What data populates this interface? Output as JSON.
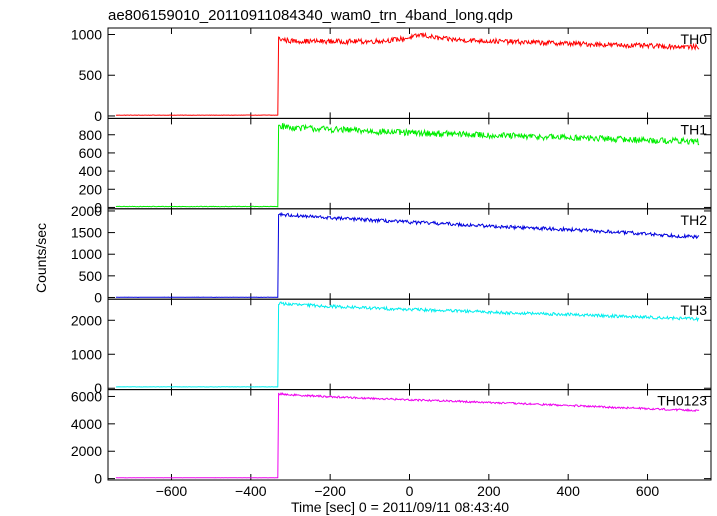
{
  "figure": {
    "title": "ae806159010_20110911084340_wam0_trn_4band_long.qdp",
    "ylabel": "Counts/sec",
    "xlabel": "Time [sec] 0 = 2011/09/11 08:43:40"
  },
  "chart_data": {
    "type": "line",
    "title": "ae806159010_20110911084340_wam0_trn_4band_long.qdp",
    "xlabel": "Time [sec] 0 = 2011/09/11 08:43:40",
    "ylabel": "Counts/sec",
    "xlim": [
      -760,
      760
    ],
    "x_ticks": [
      -600,
      -400,
      -200,
      0,
      200,
      400,
      600
    ],
    "x_tick_labels": [
      "−600",
      "−400",
      "−200",
      "0",
      "200",
      "400",
      "600"
    ],
    "grid": false,
    "x_range_data": [
      -740,
      730
    ],
    "step_time": -330,
    "series": [
      {
        "name": "TH0",
        "color": "#ff0000",
        "ylim": [
          -30,
          1080
        ],
        "ticks": [
          0,
          500,
          1000
        ],
        "tick_labels": [
          "0",
          "500",
          "1000"
        ],
        "pre_level": 10,
        "noise": 30,
        "profile_x": [
          -330,
          -300,
          -200,
          -100,
          -60,
          -20,
          10,
          30,
          50,
          80,
          120,
          200,
          300,
          400,
          500,
          600,
          700,
          730
        ],
        "profile_y": [
          950,
          920,
          915,
          915,
          925,
          945,
          970,
          1000,
          975,
          950,
          935,
          920,
          905,
          890,
          875,
          860,
          850,
          845
        ]
      },
      {
        "name": "TH1",
        "color": "#00ee00",
        "ylim": [
          -15,
          980
        ],
        "ticks": [
          0,
          200,
          400,
          600,
          800
        ],
        "tick_labels": [
          "0",
          "200",
          "400",
          "600",
          "800"
        ],
        "pre_level": 10,
        "noise": 35,
        "profile_x": [
          -330,
          -300,
          -200,
          -100,
          0,
          100,
          200,
          300,
          400,
          500,
          600,
          700,
          730
        ],
        "profile_y": [
          900,
          880,
          860,
          840,
          820,
          810,
          795,
          780,
          770,
          755,
          740,
          730,
          725
        ]
      },
      {
        "name": "TH2",
        "color": "#0000dd",
        "ylim": [
          -40,
          2050
        ],
        "ticks": [
          0,
          500,
          1000,
          1500,
          2000
        ],
        "tick_labels": [
          "0",
          "500",
          "1000",
          "1500",
          "2000"
        ],
        "pre_level": 5,
        "noise": 40,
        "profile_x": [
          -330,
          -300,
          -200,
          -100,
          0,
          100,
          200,
          300,
          400,
          500,
          600,
          700,
          730
        ],
        "profile_y": [
          1930,
          1900,
          1840,
          1790,
          1740,
          1700,
          1650,
          1610,
          1570,
          1520,
          1470,
          1410,
          1390
        ]
      },
      {
        "name": "TH3",
        "color": "#00eeee",
        "ylim": [
          -40,
          2620
        ],
        "ticks": [
          0,
          1000,
          2000
        ],
        "tick_labels": [
          "0",
          "1000",
          "2000"
        ],
        "pre_level": 40,
        "noise": 45,
        "profile_x": [
          -330,
          -300,
          -200,
          -100,
          0,
          100,
          200,
          300,
          400,
          500,
          600,
          700,
          730
        ],
        "profile_y": [
          2500,
          2470,
          2410,
          2360,
          2320,
          2280,
          2240,
          2200,
          2170,
          2130,
          2090,
          2050,
          2030
        ]
      },
      {
        "name": "TH0123",
        "color": "#ee00ee",
        "ylim": [
          -100,
          6500
        ],
        "ticks": [
          0,
          2000,
          4000,
          6000
        ],
        "tick_labels": [
          "0",
          "2000",
          "4000",
          "6000"
        ],
        "pre_level": 60,
        "noise": 70,
        "profile_x": [
          -330,
          -300,
          -200,
          -100,
          0,
          100,
          200,
          300,
          400,
          500,
          600,
          700,
          730
        ],
        "profile_y": [
          6200,
          6120,
          5980,
          5860,
          5760,
          5670,
          5560,
          5450,
          5340,
          5220,
          5110,
          5000,
          4970
        ]
      }
    ]
  }
}
